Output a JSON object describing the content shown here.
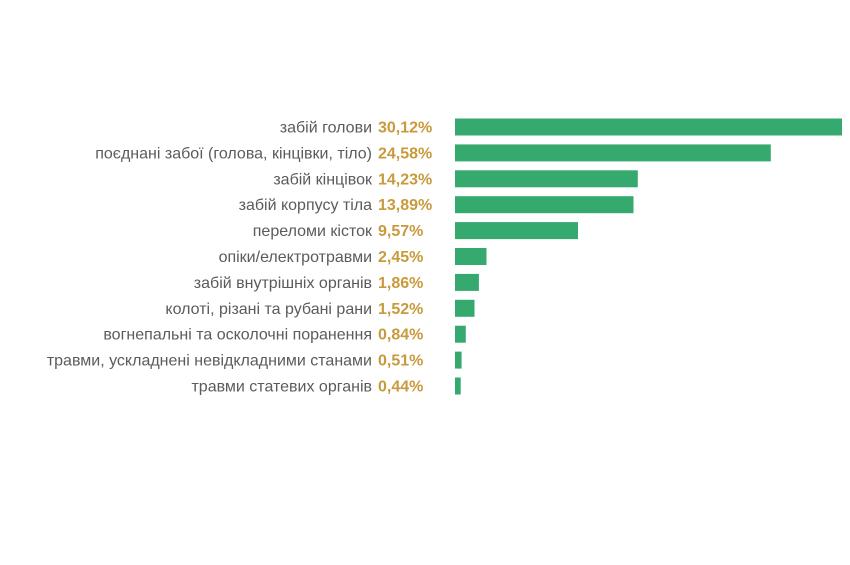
{
  "chart_data": {
    "type": "bar",
    "orientation": "horizontal",
    "categories": [
      "забій голови",
      "поєднані забої (голова, кінцівки, тіло)",
      "забій кінцівок",
      "забій корпусу тіла",
      "переломи кісток",
      "опіки/електротравми",
      "забій внутрішніх органів",
      "колоті, різані та рубані рани",
      "вогнепальні та осколочні поранення",
      "травми, ускладнені невідкладними станами",
      "травми статевих органів"
    ],
    "values": [
      30.12,
      24.58,
      14.23,
      13.89,
      9.57,
      2.45,
      1.86,
      1.52,
      0.84,
      0.51,
      0.44
    ],
    "value_labels": [
      "30,12%",
      "24,58%",
      "14,23%",
      "13,89%",
      "9,57%",
      "2,45%",
      "1,86%",
      "1,52%",
      "0,84%",
      "0,51%",
      "0,44%"
    ],
    "title": "",
    "xlabel": "",
    "ylabel": "",
    "grid": false,
    "colors": {
      "bar": "#36a96e",
      "value_label": "#c99a3c",
      "category_label": "#5b5b5b"
    }
  }
}
